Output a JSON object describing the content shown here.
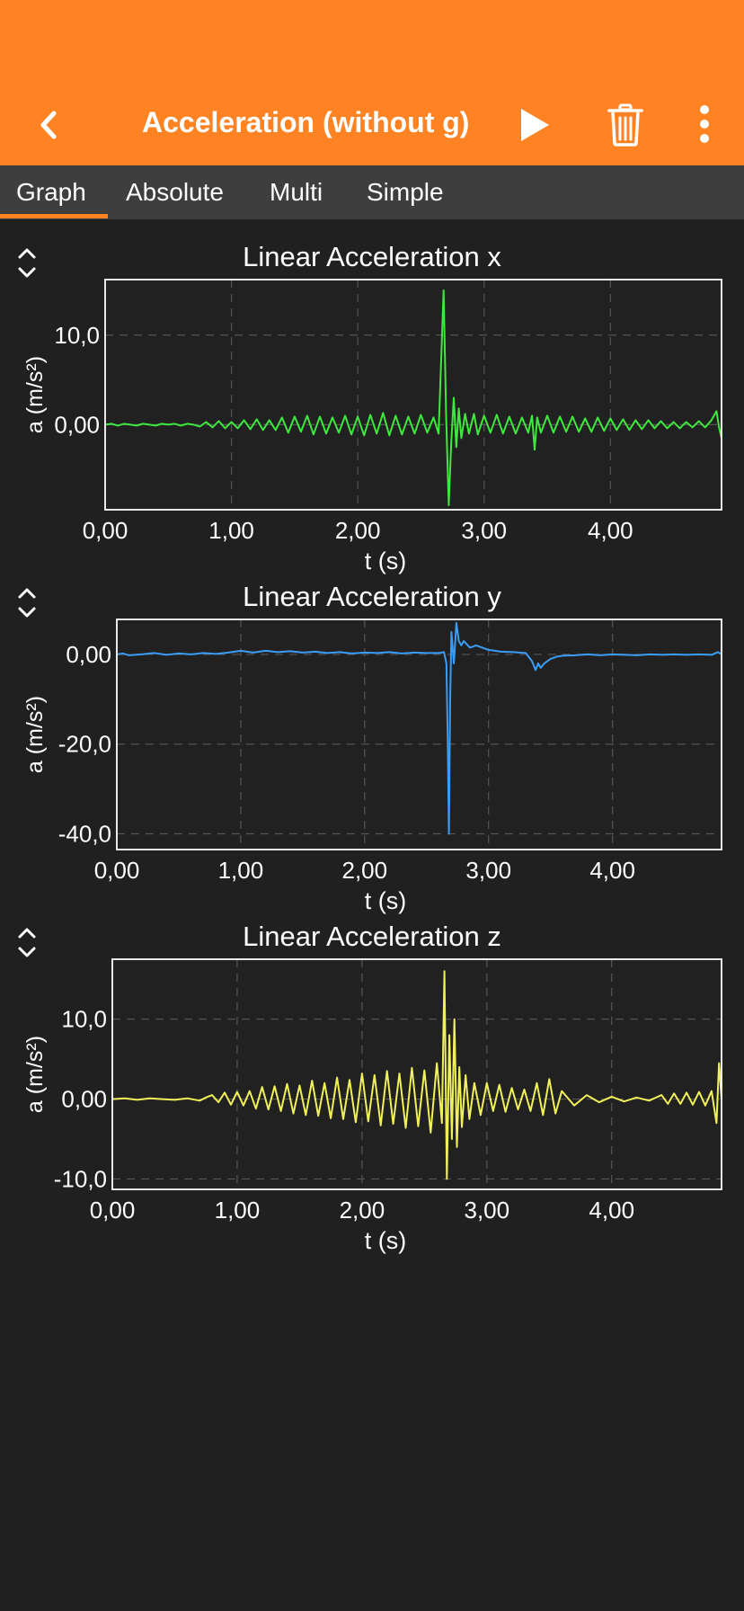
{
  "header": {
    "title": "Acceleration (without g)",
    "back_icon": "chevron-left-icon",
    "play_icon": "play-icon",
    "delete_icon": "trash-icon",
    "more_icon": "more-vertical-icon",
    "background_color": "#ff8223"
  },
  "tabs": [
    {
      "label": "Graph",
      "active": true
    },
    {
      "label": "Absolute",
      "active": false
    },
    {
      "label": "Multi",
      "active": false
    },
    {
      "label": "Simple",
      "active": false
    }
  ],
  "chart_data": [
    {
      "type": "line",
      "title": "Linear Acceleration x",
      "xlabel": "t (s)",
      "ylabel": "a (m/s²)",
      "xlim": [
        0,
        4.88
      ],
      "ylim": [
        -9.5,
        16.2
      ],
      "x_ticks": [
        0,
        1,
        2,
        3,
        4
      ],
      "x_tick_labels": [
        "0,00",
        "1,00",
        "2,00",
        "3,00",
        "4,00"
      ],
      "y_ticks": [
        0,
        10
      ],
      "y_tick_labels": [
        "0,00",
        "10,0"
      ],
      "grid": true,
      "color": "#3ee83e",
      "series": [
        {
          "x": [
            0,
            0.05,
            0.1,
            0.15,
            0.2,
            0.25,
            0.3,
            0.35,
            0.4,
            0.45,
            0.5,
            0.55,
            0.6,
            0.65,
            0.7,
            0.75,
            0.8,
            0.85,
            0.9,
            0.95,
            1.0,
            1.05,
            1.1,
            1.15,
            1.2,
            1.25,
            1.3,
            1.35,
            1.4,
            1.45,
            1.5,
            1.55,
            1.6,
            1.65,
            1.7,
            1.75,
            1.8,
            1.85,
            1.9,
            1.95,
            2.0,
            2.05,
            2.1,
            2.15,
            2.2,
            2.25,
            2.3,
            2.35,
            2.4,
            2.45,
            2.5,
            2.55,
            2.6,
            2.64,
            2.68,
            2.7,
            2.72,
            2.74,
            2.76,
            2.78,
            2.8,
            2.82,
            2.85,
            2.88,
            2.92,
            2.95,
            3.0,
            3.05,
            3.1,
            3.15,
            3.2,
            3.25,
            3.3,
            3.35,
            3.38,
            3.4,
            3.42,
            3.45,
            3.5,
            3.55,
            3.6,
            3.65,
            3.7,
            3.75,
            3.8,
            3.85,
            3.9,
            3.95,
            4.0,
            4.05,
            4.1,
            4.15,
            4.2,
            4.25,
            4.3,
            4.35,
            4.4,
            4.45,
            4.5,
            4.55,
            4.6,
            4.65,
            4.7,
            4.75,
            4.8,
            4.84,
            4.86,
            4.88
          ],
          "y": [
            0,
            0.1,
            -0.1,
            0.1,
            0,
            -0.1,
            0.1,
            0,
            -0.1,
            0.1,
            0,
            0.1,
            -0.1,
            0.1,
            0,
            -0.2,
            0.3,
            -0.3,
            0.4,
            -0.4,
            0.3,
            -0.4,
            0.5,
            -0.5,
            0.6,
            -0.6,
            0.5,
            -0.6,
            0.8,
            -0.9,
            0.9,
            -0.8,
            1.0,
            -1.1,
            0.9,
            -1.0,
            0.8,
            -0.9,
            1.0,
            -1.1,
            0.9,
            -1.2,
            1.1,
            -1.0,
            1.3,
            -1.2,
            1.0,
            -1.1,
            0.9,
            -1.0,
            1.1,
            -0.9,
            0.8,
            -1.0,
            15.0,
            1.0,
            -9.0,
            -2.0,
            3.0,
            -2.5,
            1.8,
            -1.5,
            1.2,
            -1.0,
            1.2,
            -1.1,
            1.0,
            -0.9,
            1.1,
            -1.0,
            0.9,
            -1.0,
            0.8,
            -0.9,
            1.0,
            -2.8,
            0.8,
            -0.9,
            1.0,
            -0.9,
            0.9,
            -0.8,
            0.9,
            -0.8,
            0.7,
            -0.8,
            0.8,
            -0.7,
            0.7,
            -0.6,
            0.6,
            -0.6,
            0.5,
            -0.5,
            0.5,
            -0.4,
            0.4,
            -0.4,
            0.3,
            -0.4,
            0.3,
            -0.3,
            0.4,
            -0.3,
            0.5,
            1.5,
            -0.3,
            -1.5
          ]
        }
      ]
    },
    {
      "type": "line",
      "title": "Linear Acceleration y",
      "xlabel": "t (s)",
      "ylabel": "a (m/s²)",
      "xlim": [
        0,
        4.88
      ],
      "ylim": [
        -43.5,
        7.8
      ],
      "x_ticks": [
        0,
        1,
        2,
        3,
        4
      ],
      "x_tick_labels": [
        "0,00",
        "1,00",
        "2,00",
        "3,00",
        "4,00"
      ],
      "y_ticks": [
        -40,
        -20,
        0
      ],
      "y_tick_labels": [
        "-40,0",
        "-20,0",
        "0,00"
      ],
      "grid": true,
      "color": "#3a9cf5",
      "series": [
        {
          "x": [
            0,
            0.05,
            0.1,
            0.2,
            0.3,
            0.4,
            0.5,
            0.6,
            0.7,
            0.8,
            0.9,
            1.0,
            1.1,
            1.2,
            1.3,
            1.4,
            1.5,
            1.6,
            1.7,
            1.8,
            1.9,
            2.0,
            2.1,
            2.2,
            2.3,
            2.4,
            2.5,
            2.6,
            2.64,
            2.66,
            2.67,
            2.68,
            2.69,
            2.7,
            2.72,
            2.74,
            2.76,
            2.78,
            2.8,
            2.85,
            2.9,
            3.0,
            3.1,
            3.2,
            3.3,
            3.35,
            3.38,
            3.4,
            3.42,
            3.45,
            3.5,
            3.55,
            3.6,
            3.7,
            3.8,
            3.9,
            4.0,
            4.1,
            4.2,
            4.3,
            4.4,
            4.5,
            4.6,
            4.7,
            4.8,
            4.85,
            4.88
          ],
          "y": [
            0,
            0.2,
            -0.2,
            0,
            0.3,
            -0.1,
            0.2,
            0,
            0.3,
            0.1,
            0.4,
            0.8,
            0.4,
            0.8,
            0.5,
            0.7,
            0.4,
            0.6,
            0.3,
            0.5,
            0.2,
            0.4,
            0.3,
            0.5,
            0.2,
            0.4,
            0.3,
            0.3,
            0.5,
            -2.0,
            -18.0,
            -40.0,
            -10.0,
            5.0,
            -2.0,
            7.0,
            3.0,
            2.0,
            3.0,
            1.5,
            2.0,
            1.0,
            0.6,
            0.5,
            0.3,
            -1.5,
            -3.5,
            -2.0,
            -3.0,
            -2.0,
            -1.0,
            -0.5,
            -0.3,
            -0.2,
            0,
            -0.2,
            0,
            -0.1,
            -0.2,
            0,
            -0.1,
            0,
            -0.1,
            0,
            -0.1,
            0.5,
            0
          ]
        }
      ]
    },
    {
      "type": "line",
      "title": "Linear Acceleration z",
      "xlabel": "t (s)",
      "ylabel": "a (m/s²)",
      "xlim": [
        0,
        4.88
      ],
      "ylim": [
        -11.3,
        17.5
      ],
      "x_ticks": [
        0,
        1,
        2,
        3,
        4
      ],
      "x_tick_labels": [
        "0,00",
        "1,00",
        "2,00",
        "3,00",
        "4,00"
      ],
      "y_ticks": [
        -10,
        0,
        10
      ],
      "y_tick_labels": [
        "-10,0",
        "0,00",
        "10,0"
      ],
      "grid": true,
      "color": "#f0f05a",
      "series": [
        {
          "x": [
            0,
            0.1,
            0.2,
            0.3,
            0.4,
            0.5,
            0.6,
            0.7,
            0.75,
            0.8,
            0.85,
            0.9,
            0.95,
            1.0,
            1.05,
            1.1,
            1.15,
            1.2,
            1.25,
            1.3,
            1.35,
            1.4,
            1.45,
            1.5,
            1.55,
            1.6,
            1.65,
            1.7,
            1.75,
            1.8,
            1.85,
            1.9,
            1.95,
            2.0,
            2.05,
            2.1,
            2.15,
            2.2,
            2.25,
            2.3,
            2.35,
            2.4,
            2.45,
            2.5,
            2.55,
            2.6,
            2.64,
            2.66,
            2.68,
            2.7,
            2.72,
            2.74,
            2.76,
            2.78,
            2.8,
            2.83,
            2.86,
            2.9,
            2.95,
            3.0,
            3.05,
            3.1,
            3.15,
            3.2,
            3.25,
            3.3,
            3.35,
            3.4,
            3.45,
            3.5,
            3.55,
            3.6,
            3.7,
            3.8,
            3.9,
            4.0,
            4.1,
            4.2,
            4.3,
            4.4,
            4.45,
            4.5,
            4.55,
            4.6,
            4.65,
            4.7,
            4.75,
            4.8,
            4.84,
            4.86,
            4.88
          ],
          "y": [
            0,
            0.1,
            -0.1,
            0.1,
            0,
            -0.1,
            0.1,
            -0.2,
            0.2,
            0.5,
            -0.4,
            0.8,
            -0.7,
            0.9,
            -0.8,
            1.0,
            -1.2,
            1.5,
            -1.3,
            1.6,
            -1.5,
            1.9,
            -1.8,
            1.7,
            -2.0,
            2.3,
            -2.1,
            2.0,
            -2.4,
            2.7,
            -2.5,
            2.4,
            -2.9,
            3.2,
            -2.8,
            3.0,
            -3.3,
            3.5,
            -3.1,
            3.2,
            -3.6,
            3.9,
            -3.4,
            3.6,
            -4.2,
            4.5,
            -3.0,
            16.0,
            -10.0,
            8.0,
            -5.0,
            10.0,
            -6.0,
            4.0,
            -3.5,
            3.0,
            -2.5,
            2.0,
            -2.0,
            2.0,
            -1.5,
            1.8,
            -1.6,
            1.4,
            -1.3,
            1.2,
            -1.5,
            2.0,
            -2.0,
            2.5,
            -1.8,
            1.0,
            -0.8,
            0.5,
            -0.4,
            0.3,
            -0.3,
            0.2,
            -0.2,
            0.5,
            -0.6,
            0.7,
            -0.6,
            0.8,
            -0.7,
            0.9,
            -0.8,
            1.0,
            -3.0,
            4.5,
            0
          ]
        }
      ]
    }
  ]
}
